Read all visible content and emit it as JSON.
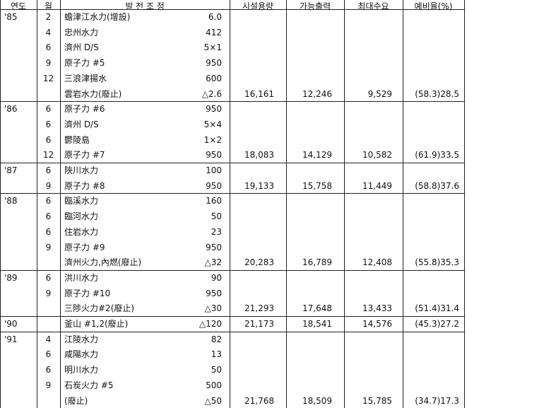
{
  "table": {
    "header": [
      "연도",
      "월",
      "발 전 조 정",
      "시설용량",
      "가능출력",
      "최대수요",
      "예비율(%)"
    ],
    "groups": [
      {
        "year": "'85",
        "rows": [
          {
            "month": "2",
            "item": "蟾津江水力(增設)",
            "capacity": "6.0"
          },
          {
            "month": "4",
            "item": "忠州水力",
            "capacity": "412"
          },
          {
            "month": "6",
            "item": "濟州 D/S",
            "capacity": "5×1"
          },
          {
            "month": "9",
            "item": "原子力 #5",
            "capacity": "950"
          },
          {
            "month": "12",
            "item": "三浪津揚水",
            "capacity": "600"
          },
          {
            "item": "雲岩水力(廢止)",
            "capacity": "△2.6"
          }
        ],
        "totals": [
          "16,161",
          "12,246",
          "9,529",
          "(58.3)28.5"
        ]
      },
      {
        "year": "'86",
        "rows": [
          {
            "month": "6",
            "item": "原子力 #6",
            "capacity": "950"
          },
          {
            "month": "6",
            "item": "濟州 D/S",
            "capacity": "5×4"
          },
          {
            "month": "6",
            "item": "鬱陵島",
            "capacity": "1×2"
          },
          {
            "month": "12",
            "item": "原子力 #7",
            "capacity": "950"
          }
        ],
        "totals": [
          "18,083",
          "14,129",
          "10,582",
          "(61.9)33.5"
        ]
      },
      {
        "year": "'87",
        "rows": [
          {
            "month": "6",
            "item": "陜川水力",
            "capacity": "100"
          },
          {
            "month": "9",
            "item": "原子力 #8",
            "capacity": "950"
          }
        ],
        "totals": [
          "19,133",
          "15,758",
          "11,449",
          "(58.8)37.6"
        ]
      },
      {
        "year": "'88",
        "rows": [
          {
            "month": "6",
            "item": "臨溪水力",
            "capacity": "160"
          },
          {
            "month": "6",
            "item": "臨河水力",
            "capacity": "50"
          },
          {
            "month": "6",
            "item": "住岩水力",
            "capacity": "23"
          },
          {
            "month": "9",
            "item": "原子力 #9",
            "capacity": "950"
          },
          {
            "item": "濟州火力,內燃(廢止)",
            "capacity": "△32"
          }
        ],
        "totals": [
          "20,283",
          "16,789",
          "12,408",
          "(55.8)35.3"
        ]
      },
      {
        "year": "'89",
        "rows": [
          {
            "month": "6",
            "item": "洪川水力",
            "capacity": "90"
          },
          {
            "month": "9",
            "item": "原子力 #10",
            "capacity": "950"
          },
          {
            "item": "三陟火力#2(廢止)",
            "capacity": "△30"
          }
        ],
        "totals": [
          "21,293",
          "17,648",
          "13,433",
          "(51.4)31.4"
        ]
      },
      {
        "year": "'90",
        "rows": [
          {
            "item": "釜山 #1,2(廢止)",
            "capacity": "△120"
          }
        ],
        "totals": [
          "21,173",
          "18,541",
          "14,576",
          "(45.3)27.2"
        ]
      },
      {
        "year": "'91",
        "rows": [
          {
            "month": "4",
            "item": "江陵水力",
            "capacity": "82"
          },
          {
            "month": "6",
            "item": "咸陽水力",
            "capacity": "13"
          },
          {
            "month": "6",
            "item": "明川水力",
            "capacity": "50"
          },
          {
            "month": "9",
            "item": "石炭火力 #5",
            "capacity": "500"
          },
          {
            "item": "(廢止)",
            "capacity": "△50"
          }
        ],
        "totals": [
          "21,768",
          "18,509",
          "15,785",
          "(34.7)17.3"
        ]
      }
    ]
  }
}
